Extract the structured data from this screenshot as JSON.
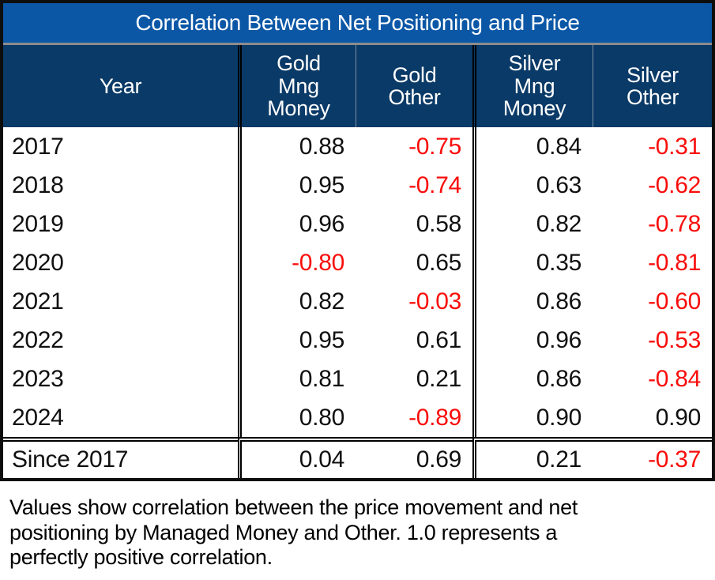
{
  "title": "Correlation Between Net Positioning and Price",
  "colors": {
    "title_bg": "#0B57A6",
    "header_bg": "#0A3A67",
    "negative": "#F90D0B",
    "positive_text": "#101010",
    "border": "#0d0d0d"
  },
  "table": {
    "columns": [
      {
        "label": "Year"
      },
      {
        "label": "Gold\nMng\nMoney"
      },
      {
        "label": "Gold\nOther"
      },
      {
        "label": "Silver\nMng\nMoney"
      },
      {
        "label": "Silver\nOther"
      }
    ],
    "rows": [
      {
        "year": "2017",
        "values": [
          "0.88",
          "-0.75",
          "0.84",
          "-0.31"
        ]
      },
      {
        "year": "2018",
        "values": [
          "0.95",
          "-0.74",
          "0.63",
          "-0.62"
        ]
      },
      {
        "year": "2019",
        "values": [
          "0.96",
          "0.58",
          "0.82",
          "-0.78"
        ]
      },
      {
        "year": "2020",
        "values": [
          "-0.80",
          "0.65",
          "0.35",
          "-0.81"
        ]
      },
      {
        "year": "2021",
        "values": [
          "0.82",
          "-0.03",
          "0.86",
          "-0.60"
        ]
      },
      {
        "year": "2022",
        "values": [
          "0.95",
          "0.61",
          "0.96",
          "-0.53"
        ]
      },
      {
        "year": "2023",
        "values": [
          "0.81",
          "0.21",
          "0.86",
          "-0.84"
        ]
      },
      {
        "year": "2024",
        "values": [
          "0.80",
          "-0.89",
          "0.90",
          "0.90"
        ]
      },
      {
        "year": "Since 2017",
        "values": [
          "0.04",
          "0.69",
          "0.21",
          "-0.37"
        ]
      }
    ]
  },
  "footnote": {
    "lines": [
      "Values show correlation between the price movement and net",
      "positioning by Managed Money and Other. 1.0 represents a",
      "perfectly positive correlation."
    ]
  },
  "chart_data": {
    "type": "table",
    "title": "Correlation Between Net Positioning and Price",
    "columns": [
      "Year",
      "Gold Mng Money",
      "Gold Other",
      "Silver Mng Money",
      "Silver Other"
    ],
    "rows": [
      [
        "2017",
        0.88,
        -0.75,
        0.84,
        -0.31
      ],
      [
        "2018",
        0.95,
        -0.74,
        0.63,
        -0.62
      ],
      [
        "2019",
        0.96,
        0.58,
        0.82,
        -0.78
      ],
      [
        "2020",
        -0.8,
        0.65,
        0.35,
        -0.81
      ],
      [
        "2021",
        0.82,
        -0.03,
        0.86,
        -0.6
      ],
      [
        "2022",
        0.95,
        0.61,
        0.96,
        -0.53
      ],
      [
        "2023",
        0.81,
        0.21,
        0.86,
        -0.84
      ],
      [
        "2024",
        0.8,
        -0.89,
        0.9,
        0.9
      ],
      [
        "Since 2017",
        0.04,
        0.69,
        0.21,
        -0.37
      ]
    ],
    "notes": "Negative values are rendered in red; positives in black."
  }
}
